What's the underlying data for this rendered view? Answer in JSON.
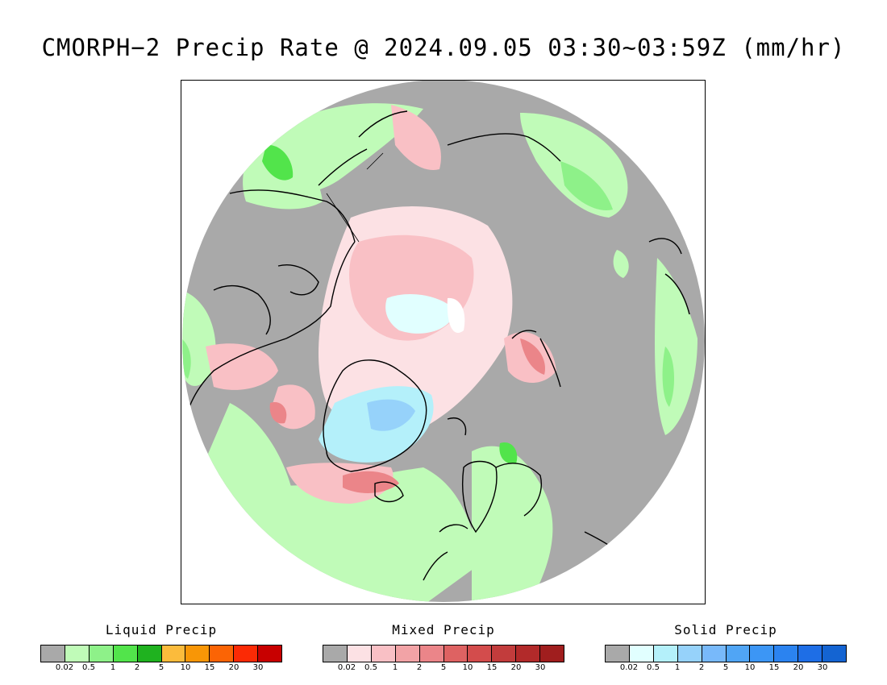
{
  "title": "CMORPH−2 Precip Rate @ 2024.09.05 03:30~03:59Z (mm/hr)",
  "map": {
    "projection": "north-polar-stereographic",
    "background_color": "#a9a9a9",
    "coastline_color": "#000000"
  },
  "legends": [
    {
      "title": "Liquid Precip",
      "ticks": [
        "0.02",
        "0.5",
        "1",
        "2",
        "5",
        "10",
        "15",
        "20",
        "30"
      ],
      "colors": [
        "#a9a9a9",
        "#c0fbb8",
        "#8ef189",
        "#52e44b",
        "#1fb21f",
        "#fbbb3c",
        "#f89606",
        "#fb6405",
        "#fb2a05",
        "#c80000"
      ]
    },
    {
      "title": "Mixed Precip",
      "ticks": [
        "0.02",
        "0.5",
        "1",
        "2",
        "5",
        "10",
        "15",
        "20",
        "30"
      ],
      "colors": [
        "#a9a9a9",
        "#fce1e4",
        "#f9c0c5",
        "#f2a3a6",
        "#eb8589",
        "#de6262",
        "#d34c4c",
        "#c23c3c",
        "#b22a2a",
        "#a01e1e"
      ]
    },
    {
      "title": "Solid Precip",
      "ticks": [
        "0.02",
        "0.5",
        "1",
        "2",
        "5",
        "10",
        "15",
        "20",
        "30"
      ],
      "colors": [
        "#a9a9a9",
        "#e1ffff",
        "#b4f0fa",
        "#96d2fa",
        "#78b9fa",
        "#50a5f5",
        "#3c96f5",
        "#2b83f0",
        "#1e6ee6",
        "#1464d2"
      ]
    }
  ]
}
